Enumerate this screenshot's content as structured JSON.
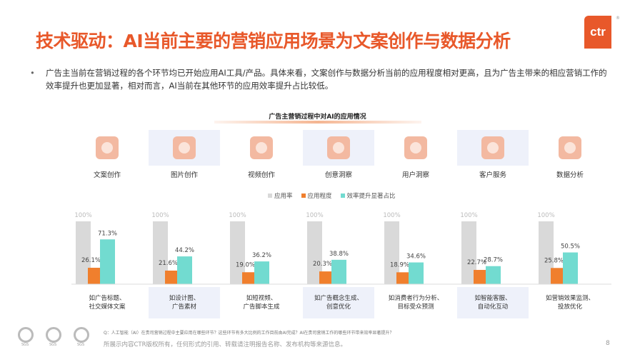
{
  "header": {
    "title": "技术驱动：AI当前主要的营销应用场景为文案创作与数据分析",
    "logo": "ctr",
    "logo_mark": "®"
  },
  "bullet": "广告主当前在营销过程的各个环节均已开始应用AI工具/产品。具体来看，文案创作与数据分析当前的应用程度相对更高，且为广告主带来的相应营销工作的效率提升也更加显著，相对而言，AI当前在其他环节的应用效率提升占比较低。",
  "chart_data": {
    "type": "bar",
    "title": "广告主营销过程中对AI的应用情况",
    "categories": [
      "文案创作",
      "图片创作",
      "视频创作",
      "创意洞察",
      "用户洞察",
      "客户服务",
      "数据分析"
    ],
    "category_icons": [
      "document-edit-icon",
      "image-icon",
      "video-icon",
      "lightbulb-head-icon",
      "users-icon",
      "headset-agent-icon",
      "data-chart-icon"
    ],
    "descriptions": [
      [
        "如广告标题、",
        "社交媒体文案"
      ],
      [
        "如设计图、",
        "广告素材"
      ],
      [
        "如短视频、",
        "广告脚本生成"
      ],
      [
        "如广告概念生成、",
        "创意优化"
      ],
      [
        "如消费者行为分析、",
        "目标受众预测"
      ],
      [
        "如智能客服、",
        "自动化互动"
      ],
      [
        "如营销效果监测、",
        "投放优化"
      ]
    ],
    "series": [
      {
        "name": "应用率",
        "color": "#d9d9d9",
        "values": [
          100,
          100,
          100,
          100,
          100,
          100,
          100
        ]
      },
      {
        "name": "应用程度",
        "color": "#f07f2d",
        "values": [
          26.1,
          21.6,
          19.0,
          20.3,
          18.9,
          22.7,
          25.8
        ]
      },
      {
        "name": "效率提升显著占比",
        "color": "#72dbd0",
        "values": [
          71.3,
          44.2,
          36.2,
          38.8,
          34.6,
          28.7,
          50.5
        ]
      }
    ],
    "ylim": [
      0,
      100
    ],
    "unit": "%",
    "legend": "top-center"
  },
  "footer": {
    "question": "Q：人工智能（AI）在贵司营销过程中主要应用在哪些环节？这些环节有多大比例的工作目前由AI完成？AI在贵司营销工作的哪些环节带来效率显著提升？",
    "copyright": "所展示内容CTR版权所有，任何形式的引用、转载请注明报告名称、发布机构等来源信息。",
    "page": "8",
    "badges": [
      "SGS",
      "SGS",
      "SGS"
    ]
  }
}
